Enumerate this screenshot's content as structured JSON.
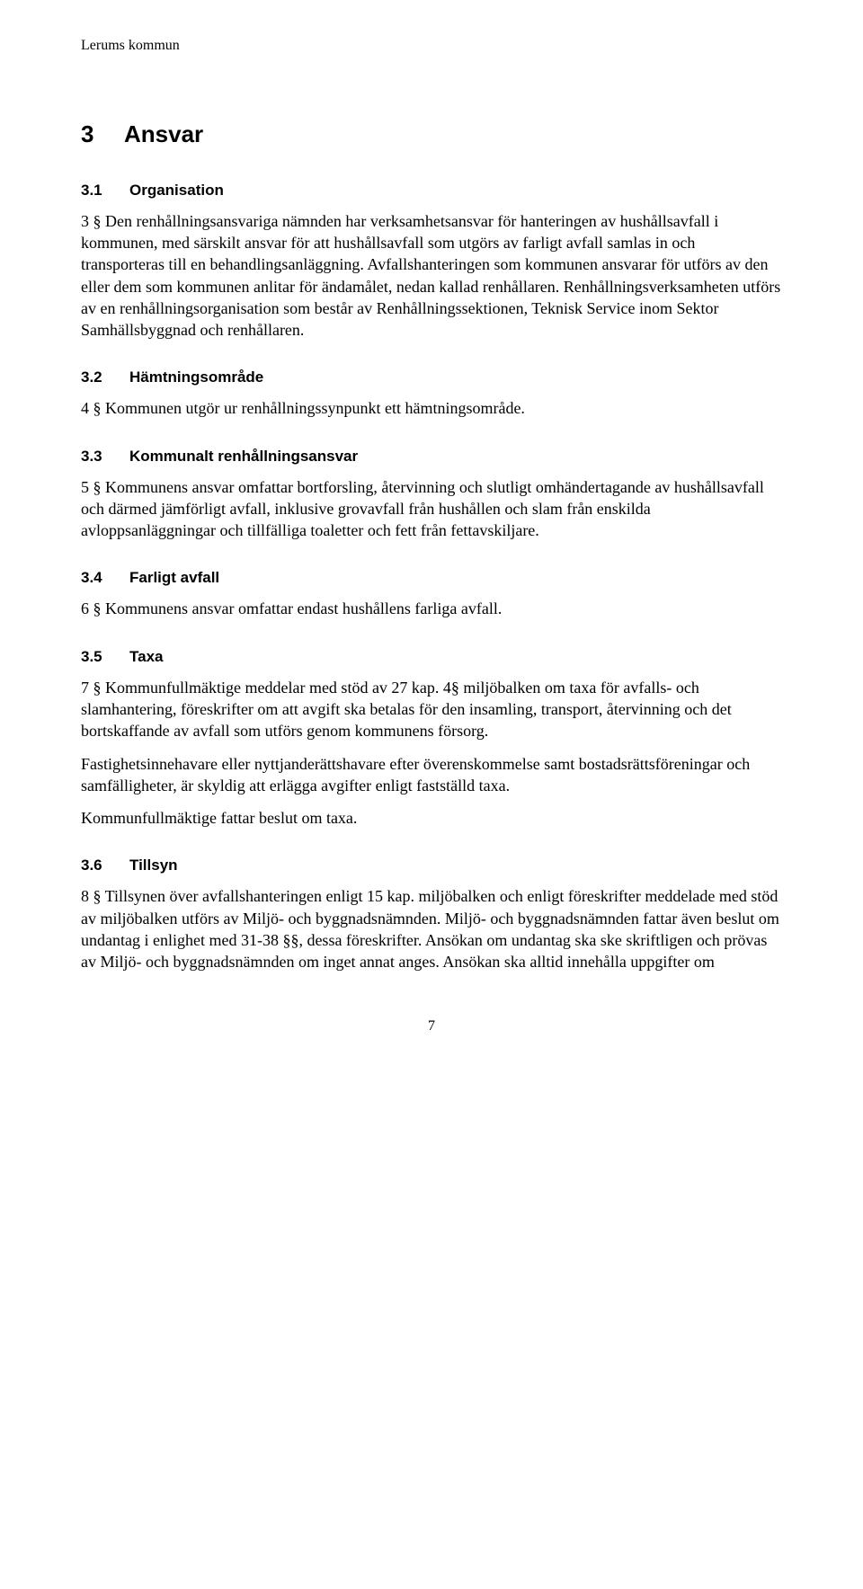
{
  "header": "Lerums kommun",
  "h1": {
    "num": "3",
    "title": "Ansvar"
  },
  "sections": {
    "s31": {
      "num": "3.1",
      "title": "Organisation",
      "p1": "3 § Den renhållningsansvariga nämnden har verksamhetsansvar för hanteringen av hushållsavfall i kommunen, med särskilt ansvar för att hushållsavfall som utgörs av farligt avfall samlas in och transporteras till en behandlingsanläggning. Avfallshanteringen som kommunen ansvarar för utförs av den eller dem som kommunen anlitar för ändamålet, nedan kallad renhållaren. Renhållningsverksamheten utförs av en renhållningsorganisation som består av Renhållningssektionen, Teknisk Service inom Sektor Samhällsbyggnad och renhållaren."
    },
    "s32": {
      "num": "3.2",
      "title": "Hämtningsområde",
      "p1": "4 § Kommunen utgör ur renhållningssynpunkt ett hämtningsområde."
    },
    "s33": {
      "num": "3.3",
      "title": "Kommunalt renhållningsansvar",
      "p1": "5 § Kommunens ansvar omfattar bortforsling, återvinning och slutligt omhändertagande av hushållsavfall och därmed jämförligt avfall, inklusive grovavfall från hushållen och slam från enskilda avloppsanläggningar och tillfälliga toaletter och fett från fettavskiljare."
    },
    "s34": {
      "num": "3.4",
      "title": "Farligt avfall",
      "p1": "6 § Kommunens ansvar omfattar endast hushållens farliga avfall."
    },
    "s35": {
      "num": "3.5",
      "title": "Taxa",
      "p1": "7 § Kommunfullmäktige meddelar med stöd av 27 kap. 4§ miljöbalken om taxa för avfalls- och slamhantering, föreskrifter om att avgift ska betalas för den insamling, transport, återvinning och det bortskaffande av avfall som utförs genom kommunens försorg.",
      "p2": "Fastighetsinnehavare eller nyttjanderättshavare efter överenskommelse samt bostadsrättsföreningar och samfälligheter, är skyldig att erlägga avgifter enligt fastställd taxa.",
      "p3": "Kommunfullmäktige fattar beslut om taxa."
    },
    "s36": {
      "num": "3.6",
      "title": "Tillsyn",
      "p1": "8 § Tillsynen över avfallshanteringen enligt 15 kap. miljöbalken och enligt föreskrifter meddelade med stöd av miljöbalken utförs av Miljö- och byggnadsnämnden. Miljö- och byggnadsnämnden fattar även beslut om undantag i enlighet med 31-38 §§, dessa föreskrifter. Ansökan om undantag ska ske skriftligen och prövas av Miljö- och byggnadsnämnden om inget annat anges. Ansökan ska alltid innehålla uppgifter om"
    }
  },
  "page_number": "7"
}
